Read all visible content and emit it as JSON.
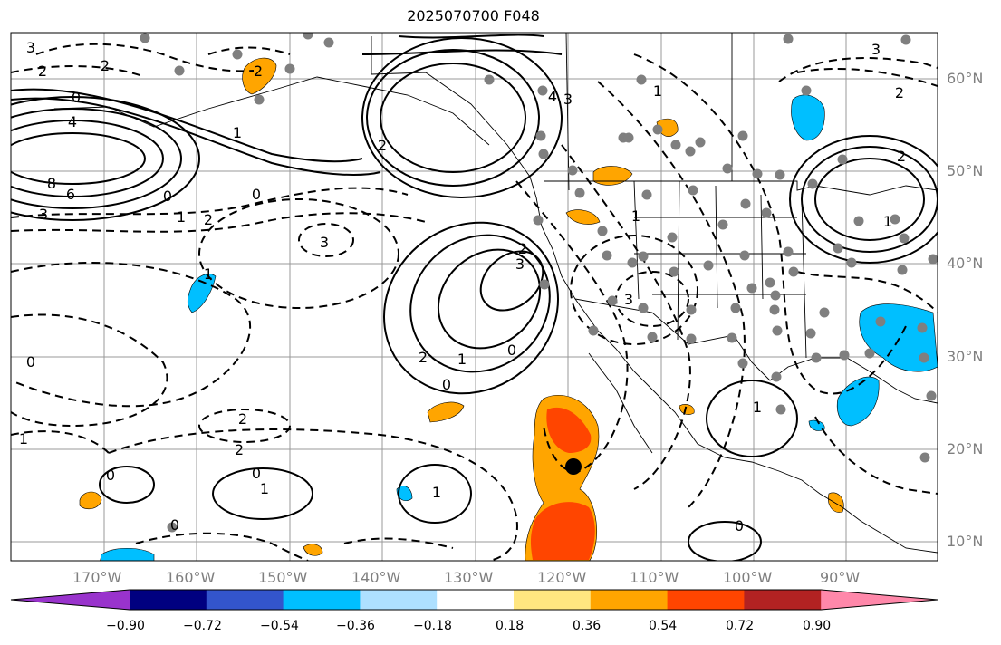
{
  "title": "2025070700 F048",
  "lon_labels": [
    "170°W",
    "160°W",
    "150°W",
    "140°W",
    "130°W",
    "120°W",
    "110°W",
    "100°W",
    "90°W"
  ],
  "lat_labels": [
    "60°N",
    "50°N",
    "40°N",
    "30°N",
    "20°N",
    "10°N"
  ],
  "colorbar": {
    "ticks": [
      "−0.90",
      "−0.72",
      "−0.54",
      "−0.36",
      "−0.18",
      "0.18",
      "0.36",
      "0.54",
      "0.72",
      "0.90"
    ],
    "colors": [
      "#9933cc",
      "#000080",
      "#3355cc",
      "#00bfff",
      "#aee0ff",
      "#ffffff",
      "#ffe680",
      "#ffa500",
      "#ff4500",
      "#b22222",
      "#ff88aa"
    ]
  },
  "contour_labels": [
    "3",
    "2",
    "2",
    "0",
    "4",
    "8",
    "6",
    "3",
    "0",
    "1",
    "2",
    "0",
    "2",
    "3",
    "2",
    "1",
    "4",
    "3",
    "2",
    "3",
    "1",
    "0",
    "0",
    "2",
    "2",
    "0",
    "1",
    "3",
    "1",
    "0",
    "1",
    "2",
    "1",
    "1",
    "0",
    "1",
    "1",
    "0",
    "2",
    "3",
    "0",
    "1",
    "2"
  ],
  "marker": {
    "lon": -120,
    "lat": 18
  }
}
